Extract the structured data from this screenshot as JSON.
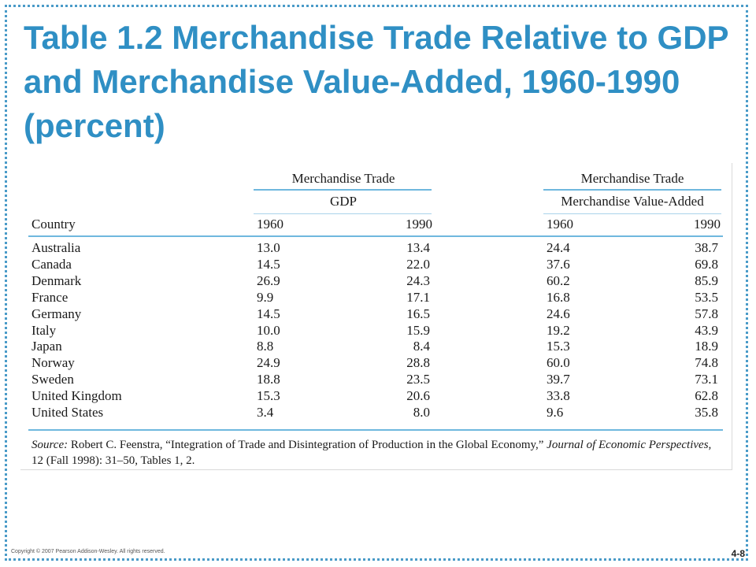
{
  "title": "Table 1.2 Merchandise Trade Relative to GDP and Merchandise Value-Added, 1960-1990 (percent)",
  "table": {
    "group_left_top": "Merchandise Trade",
    "group_left_bottom": "GDP",
    "group_right_top": "Merchandise Trade",
    "group_right_bottom": "Merchandise Value-Added",
    "col_country": "Country",
    "col_1960_a": "1960",
    "col_1990_a": "1990",
    "col_1960_b": "1960",
    "col_1990_b": "1990",
    "rows": [
      {
        "country": "Australia",
        "gdp1960": "13.0",
        "gdp1990": "13.4",
        "mva1960": "24.4",
        "mva1990": "38.7"
      },
      {
        "country": "Canada",
        "gdp1960": "14.5",
        "gdp1990": "22.0",
        "mva1960": "37.6",
        "mva1990": "69.8"
      },
      {
        "country": "Denmark",
        "gdp1960": "26.9",
        "gdp1990": "24.3",
        "mva1960": "60.2",
        "mva1990": "85.9"
      },
      {
        "country": "France",
        "gdp1960": "9.9",
        "gdp1990": "17.1",
        "mva1960": "16.8",
        "mva1990": "53.5"
      },
      {
        "country": "Germany",
        "gdp1960": "14.5",
        "gdp1990": "16.5",
        "mva1960": "24.6",
        "mva1990": "57.8"
      },
      {
        "country": "Italy",
        "gdp1960": "10.0",
        "gdp1990": "15.9",
        "mva1960": "19.2",
        "mva1990": "43.9"
      },
      {
        "country": "Japan",
        "gdp1960": "8.8",
        "gdp1990": "8.4",
        "mva1960": "15.3",
        "mva1990": "18.9"
      },
      {
        "country": "Norway",
        "gdp1960": "24.9",
        "gdp1990": "28.8",
        "mva1960": "60.0",
        "mva1990": "74.8"
      },
      {
        "country": "Sweden",
        "gdp1960": "18.8",
        "gdp1990": "23.5",
        "mva1960": "39.7",
        "mva1990": "73.1"
      },
      {
        "country": "United Kingdom",
        "gdp1960": "15.3",
        "gdp1990": "20.6",
        "mva1960": "33.8",
        "mva1990": "62.8"
      },
      {
        "country": "United States",
        "gdp1960": "3.4",
        "gdp1990": "8.0",
        "mva1960": "9.6",
        "mva1990": "35.8"
      }
    ],
    "source_label": "Source:",
    "source_text_1": " Robert C. Feenstra, “Integration of Trade and Disintegration of Production in the Global Economy,” ",
    "source_journal": "Journal of Economic Perspectives,",
    "source_text_2": " 12 (Fall 1998): 31–50, Tables 1, 2."
  },
  "footer": {
    "copyright": "Copyright © 2007 Pearson Addison-Wesley. All rights reserved.",
    "page": "4-8"
  },
  "colors": {
    "title": "#2f8fc4",
    "rule": "#6fb8de",
    "frame": "#4a9bc8"
  }
}
